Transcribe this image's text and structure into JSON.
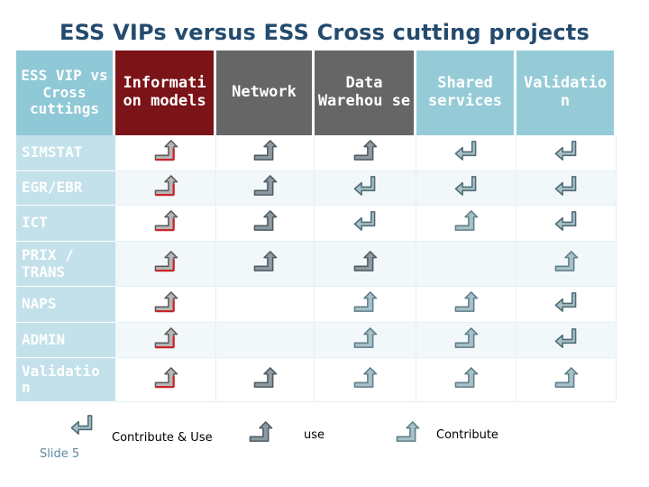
{
  "title": "ESS VIPs versus ESS Cross cutting projects",
  "corner_label": "ESS VIP vs Cross cuttings",
  "columns": [
    {
      "label": "Informati on models",
      "bg": "#7b1418"
    },
    {
      "label": "Network",
      "bg": "#666666"
    },
    {
      "label": "Data Warehou se",
      "bg": "#666666"
    },
    {
      "label": "Shared services",
      "bg": "#95cbd6"
    },
    {
      "label": "Validatio n",
      "bg": "#95cbd6"
    }
  ],
  "rows": [
    {
      "label": "SIMSTAT",
      "cells": [
        "contribute-red",
        "use-gray",
        "use-gray",
        "contribute-use",
        "contribute-use"
      ]
    },
    {
      "label": "EGR/EBR",
      "cells": [
        "contribute-red",
        "use-gray",
        "contribute-use",
        "contribute-use",
        "contribute-use"
      ]
    },
    {
      "label": "ICT",
      "cells": [
        "contribute-red",
        "use-gray",
        "contribute-use",
        "contribute",
        "contribute-use"
      ]
    },
    {
      "label": "PRIX / TRANS",
      "cells": [
        "contribute-red",
        "use-gray",
        "use",
        "",
        "contribute"
      ]
    },
    {
      "label": "NAPS",
      "cells": [
        "contribute-red",
        "",
        "contribute",
        "contribute",
        "contribute-use"
      ]
    },
    {
      "label": "ADMIN",
      "cells": [
        "contribute-red",
        "",
        "contribute",
        "contribute",
        "contribute-use"
      ]
    },
    {
      "label": "Validatio n",
      "cells": [
        "contribute-red",
        "use-gray",
        "contribute",
        "contribute",
        "contribute"
      ]
    }
  ],
  "legend": {
    "contribute_use": "Contribute & Use",
    "use": "use",
    "contribute": "Contribute"
  },
  "slide_label": "Slide 5"
}
